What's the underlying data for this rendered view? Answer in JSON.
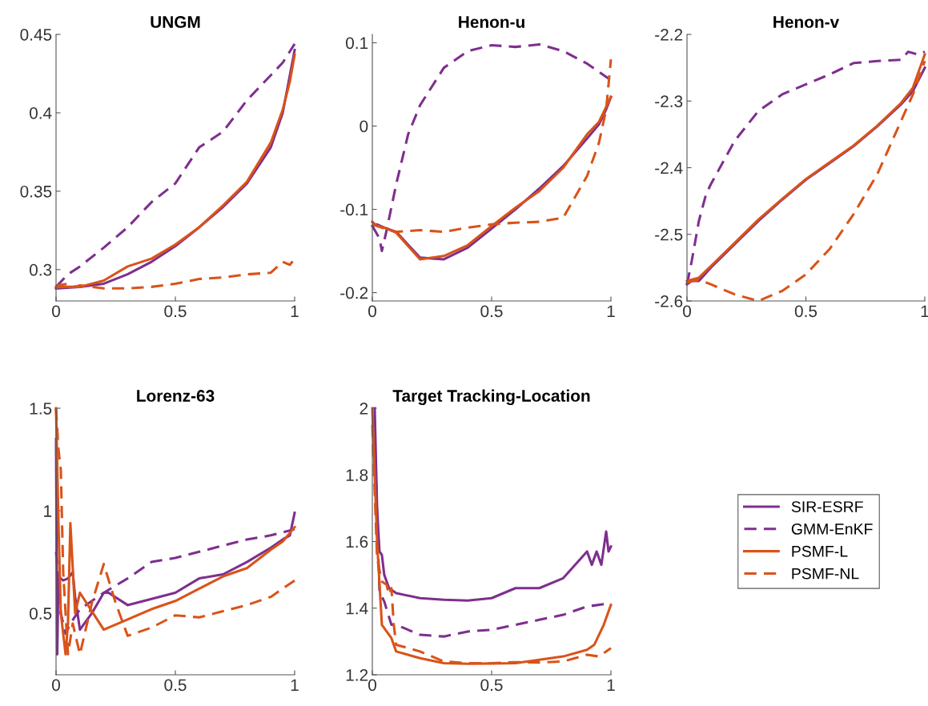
{
  "chart_data": [
    {
      "type": "line",
      "title": "UNGM",
      "xlim": [
        0,
        1
      ],
      "xticks": [
        0,
        0.5,
        1
      ],
      "ylim": [
        0.28,
        0.45
      ],
      "yticks": [
        0.3,
        0.35,
        0.4,
        0.45
      ],
      "series": [
        {
          "color": "#7e2f8e",
          "line_style": "solid",
          "x": [
            0,
            0.1,
            0.2,
            0.3,
            0.4,
            0.5,
            0.6,
            0.7,
            0.8,
            0.9,
            0.95,
            1
          ],
          "values": [
            0.288,
            0.289,
            0.291,
            0.297,
            0.305,
            0.315,
            0.327,
            0.34,
            0.355,
            0.378,
            0.4,
            0.44
          ]
        },
        {
          "color": "#7e2f8e",
          "line_style": "dashed",
          "x": [
            0,
            0.05,
            0.1,
            0.2,
            0.3,
            0.4,
            0.5,
            0.6,
            0.7,
            0.8,
            0.9,
            0.95,
            1
          ],
          "values": [
            0.289,
            0.297,
            0.302,
            0.314,
            0.327,
            0.343,
            0.355,
            0.378,
            0.388,
            0.408,
            0.424,
            0.432,
            0.444
          ]
        },
        {
          "color": "#d95319",
          "line_style": "solid",
          "x": [
            0,
            0.05,
            0.1,
            0.2,
            0.3,
            0.4,
            0.5,
            0.6,
            0.7,
            0.8,
            0.9,
            0.95,
            0.98,
            1
          ],
          "values": [
            0.289,
            0.289,
            0.289,
            0.293,
            0.302,
            0.307,
            0.316,
            0.327,
            0.341,
            0.356,
            0.381,
            0.402,
            0.42,
            0.437
          ]
        },
        {
          "color": "#d95319",
          "line_style": "dashed",
          "x": [
            0,
            0.01,
            0.05,
            0.08,
            0.1,
            0.2,
            0.3,
            0.4,
            0.5,
            0.6,
            0.7,
            0.8,
            0.9,
            0.95,
            0.98,
            1
          ],
          "values": [
            0.288,
            0.29,
            0.291,
            0.289,
            0.29,
            0.288,
            0.288,
            0.289,
            0.291,
            0.294,
            0.295,
            0.297,
            0.298,
            0.305,
            0.303,
            0.307
          ]
        }
      ]
    },
    {
      "type": "line",
      "title": "Henon-u",
      "xlim": [
        0,
        1
      ],
      "xticks": [
        0,
        0.5,
        1
      ],
      "ylim": [
        -0.21,
        0.11
      ],
      "yticks": [
        -0.2,
        -0.1,
        0,
        0.1
      ],
      "series": [
        {
          "color": "#7e2f8e",
          "line_style": "solid",
          "x": [
            0,
            0.02,
            0.05,
            0.1,
            0.2,
            0.3,
            0.4,
            0.5,
            0.6,
            0.7,
            0.8,
            0.9,
            0.95,
            0.98,
            1
          ],
          "values": [
            -0.12,
            -0.118,
            -0.122,
            -0.127,
            -0.158,
            -0.16,
            -0.146,
            -0.123,
            -0.1,
            -0.075,
            -0.048,
            -0.015,
            0.002,
            0.02,
            0.035
          ]
        },
        {
          "color": "#7e2f8e",
          "line_style": "dashed",
          "x": [
            0,
            0.03,
            0.04,
            0.06,
            0.1,
            0.15,
            0.2,
            0.3,
            0.4,
            0.5,
            0.6,
            0.7,
            0.8,
            0.9,
            0.95,
            1
          ],
          "values": [
            -0.12,
            -0.135,
            -0.15,
            -0.125,
            -0.07,
            -0.01,
            0.025,
            0.07,
            0.09,
            0.097,
            0.095,
            0.098,
            0.09,
            0.075,
            0.065,
            0.055
          ]
        },
        {
          "color": "#d95319",
          "line_style": "solid",
          "x": [
            0,
            0.02,
            0.05,
            0.1,
            0.2,
            0.3,
            0.4,
            0.5,
            0.6,
            0.7,
            0.8,
            0.9,
            0.95,
            1
          ],
          "values": [
            -0.115,
            -0.12,
            -0.122,
            -0.128,
            -0.16,
            -0.156,
            -0.143,
            -0.12,
            -0.098,
            -0.078,
            -0.05,
            -0.01,
            0.005,
            0.035
          ]
        },
        {
          "color": "#d95319",
          "line_style": "dashed",
          "x": [
            0,
            0.05,
            0.1,
            0.2,
            0.3,
            0.4,
            0.5,
            0.6,
            0.7,
            0.8,
            0.9,
            0.95,
            0.98,
            1
          ],
          "values": [
            -0.118,
            -0.123,
            -0.127,
            -0.125,
            -0.127,
            -0.122,
            -0.118,
            -0.116,
            -0.115,
            -0.11,
            -0.06,
            -0.02,
            0.02,
            0.08
          ]
        }
      ]
    },
    {
      "type": "line",
      "title": "Henon-v",
      "xlim": [
        0,
        1
      ],
      "xticks": [
        0,
        0.5,
        1
      ],
      "ylim": [
        -2.6,
        -2.2
      ],
      "yticks": [
        -2.6,
        -2.5,
        -2.4,
        -2.3,
        -2.2
      ],
      "series": [
        {
          "color": "#7e2f8e",
          "line_style": "solid",
          "x": [
            0,
            0.02,
            0.05,
            0.1,
            0.2,
            0.3,
            0.4,
            0.5,
            0.6,
            0.7,
            0.8,
            0.9,
            0.95,
            1
          ],
          "values": [
            -2.575,
            -2.57,
            -2.57,
            -2.55,
            -2.515,
            -2.48,
            -2.448,
            -2.418,
            -2.393,
            -2.368,
            -2.338,
            -2.305,
            -2.285,
            -2.25
          ]
        },
        {
          "color": "#7e2f8e",
          "line_style": "dashed",
          "x": [
            0,
            0.02,
            0.05,
            0.08,
            0.1,
            0.2,
            0.3,
            0.4,
            0.5,
            0.6,
            0.7,
            0.8,
            0.9,
            0.93,
            0.97,
            1
          ],
          "values": [
            -2.575,
            -2.54,
            -2.48,
            -2.44,
            -2.425,
            -2.36,
            -2.315,
            -2.29,
            -2.275,
            -2.26,
            -2.243,
            -2.24,
            -2.238,
            -2.226,
            -2.23,
            -2.226
          ]
        },
        {
          "color": "#d95319",
          "line_style": "solid",
          "x": [
            0,
            0.05,
            0.1,
            0.2,
            0.3,
            0.4,
            0.5,
            0.6,
            0.7,
            0.8,
            0.9,
            0.95,
            1
          ],
          "values": [
            -2.57,
            -2.565,
            -2.548,
            -2.513,
            -2.478,
            -2.447,
            -2.417,
            -2.392,
            -2.367,
            -2.337,
            -2.303,
            -2.28,
            -2.23
          ]
        },
        {
          "color": "#d95319",
          "line_style": "dashed",
          "x": [
            0,
            0.05,
            0.1,
            0.2,
            0.3,
            0.4,
            0.5,
            0.6,
            0.7,
            0.8,
            0.9,
            0.95,
            1
          ],
          "values": [
            -2.572,
            -2.568,
            -2.575,
            -2.59,
            -2.6,
            -2.585,
            -2.56,
            -2.522,
            -2.47,
            -2.41,
            -2.33,
            -2.29,
            -2.24
          ]
        }
      ]
    },
    {
      "type": "line",
      "title": "Lorenz-63",
      "xlim": [
        0,
        1
      ],
      "xticks": [
        0,
        0.5,
        1
      ],
      "ylim": [
        0.2,
        1.5
      ],
      "yticks": [
        0.5,
        1,
        1.5
      ],
      "series": [
        {
          "color": "#7e2f8e",
          "line_style": "solid",
          "x": [
            0,
            0.005,
            0.01,
            0.03,
            0.05,
            0.07,
            0.08,
            0.1,
            0.15,
            0.2,
            0.22,
            0.3,
            0.4,
            0.5,
            0.6,
            0.7,
            0.8,
            0.9,
            0.95,
            0.98,
            1
          ],
          "values": [
            1.35,
            0.3,
            0.68,
            0.66,
            0.67,
            0.7,
            0.58,
            0.42,
            0.5,
            0.6,
            0.6,
            0.54,
            0.57,
            0.6,
            0.67,
            0.69,
            0.75,
            0.82,
            0.86,
            0.88,
            0.99
          ]
        },
        {
          "color": "#7e2f8e",
          "line_style": "dashed",
          "x": [
            0,
            0.02,
            0.04,
            0.06,
            0.1,
            0.2,
            0.3,
            0.4,
            0.5,
            0.6,
            0.7,
            0.8,
            0.9,
            1
          ],
          "values": [
            0.8,
            0.5,
            0.4,
            0.45,
            0.52,
            0.6,
            0.67,
            0.75,
            0.77,
            0.8,
            0.83,
            0.86,
            0.88,
            0.91
          ]
        },
        {
          "color": "#d95319",
          "line_style": "solid",
          "x": [
            0,
            0.01,
            0.02,
            0.04,
            0.05,
            0.06,
            0.08,
            0.1,
            0.2,
            0.3,
            0.4,
            0.5,
            0.6,
            0.7,
            0.8,
            0.9,
            0.95,
            1
          ],
          "values": [
            1.5,
            0.95,
            0.5,
            0.3,
            0.45,
            0.94,
            0.5,
            0.6,
            0.42,
            0.47,
            0.52,
            0.56,
            0.62,
            0.68,
            0.72,
            0.81,
            0.85,
            0.92
          ]
        },
        {
          "color": "#d95319",
          "line_style": "dashed",
          "x": [
            0,
            0.01,
            0.02,
            0.03,
            0.05,
            0.07,
            0.1,
            0.15,
            0.2,
            0.25,
            0.3,
            0.4,
            0.5,
            0.6,
            0.7,
            0.8,
            0.9,
            0.95,
            1
          ],
          "values": [
            1.5,
            1.3,
            1.2,
            0.7,
            0.3,
            0.45,
            0.3,
            0.55,
            0.74,
            0.55,
            0.39,
            0.43,
            0.49,
            0.48,
            0.51,
            0.54,
            0.58,
            0.62,
            0.66
          ]
        }
      ]
    },
    {
      "type": "line",
      "title": "Target Tracking-Location",
      "xlim": [
        0,
        1
      ],
      "xticks": [
        0,
        0.5,
        1
      ],
      "ylim": [
        1.2,
        2
      ],
      "yticks": [
        1.2,
        1.4,
        1.6,
        1.8,
        2
      ],
      "legend": "right",
      "series": [
        {
          "name": "SIR-ESRF",
          "color": "#7e2f8e",
          "line_style": "solid",
          "x": [
            0.01,
            0.02,
            0.03,
            0.04,
            0.05,
            0.07,
            0.1,
            0.2,
            0.3,
            0.4,
            0.5,
            0.6,
            0.7,
            0.8,
            0.9,
            0.92,
            0.94,
            0.96,
            0.98,
            0.99,
            1
          ],
          "values": [
            2,
            1.7,
            1.57,
            1.56,
            1.5,
            1.46,
            1.445,
            1.43,
            1.425,
            1.423,
            1.43,
            1.46,
            1.46,
            1.49,
            1.57,
            1.53,
            1.57,
            1.53,
            1.63,
            1.57,
            1.585
          ]
        },
        {
          "name": "GMM-EnKF",
          "color": "#7e2f8e",
          "line_style": "dashed",
          "x": [
            0.01,
            0.03,
            0.05,
            0.08,
            0.1,
            0.2,
            0.3,
            0.4,
            0.5,
            0.6,
            0.7,
            0.8,
            0.9,
            1
          ],
          "values": [
            1.9,
            1.45,
            1.42,
            1.35,
            1.35,
            1.32,
            1.315,
            1.33,
            1.335,
            1.35,
            1.365,
            1.38,
            1.405,
            1.415
          ]
        },
        {
          "name": "PSMF-L",
          "color": "#d95319",
          "line_style": "solid",
          "x": [
            0,
            0.02,
            0.04,
            0.06,
            0.08,
            0.1,
            0.2,
            0.3,
            0.4,
            0.5,
            0.6,
            0.7,
            0.8,
            0.9,
            0.93,
            0.97,
            1
          ],
          "values": [
            2,
            1.6,
            1.35,
            1.33,
            1.31,
            1.27,
            1.25,
            1.235,
            1.233,
            1.234,
            1.235,
            1.245,
            1.255,
            1.275,
            1.29,
            1.35,
            1.41
          ]
        },
        {
          "name": "PSMF-NL",
          "color": "#d95319",
          "line_style": "dashed",
          "x": [
            0,
            0.02,
            0.04,
            0.06,
            0.07,
            0.08,
            0.09,
            0.1,
            0.2,
            0.3,
            0.4,
            0.5,
            0.6,
            0.7,
            0.8,
            0.9,
            0.95,
            1
          ],
          "values": [
            1.95,
            1.55,
            1.48,
            1.47,
            1.44,
            1.46,
            1.35,
            1.29,
            1.27,
            1.24,
            1.235,
            1.235,
            1.238,
            1.237,
            1.24,
            1.26,
            1.255,
            1.28
          ]
        }
      ]
    }
  ]
}
